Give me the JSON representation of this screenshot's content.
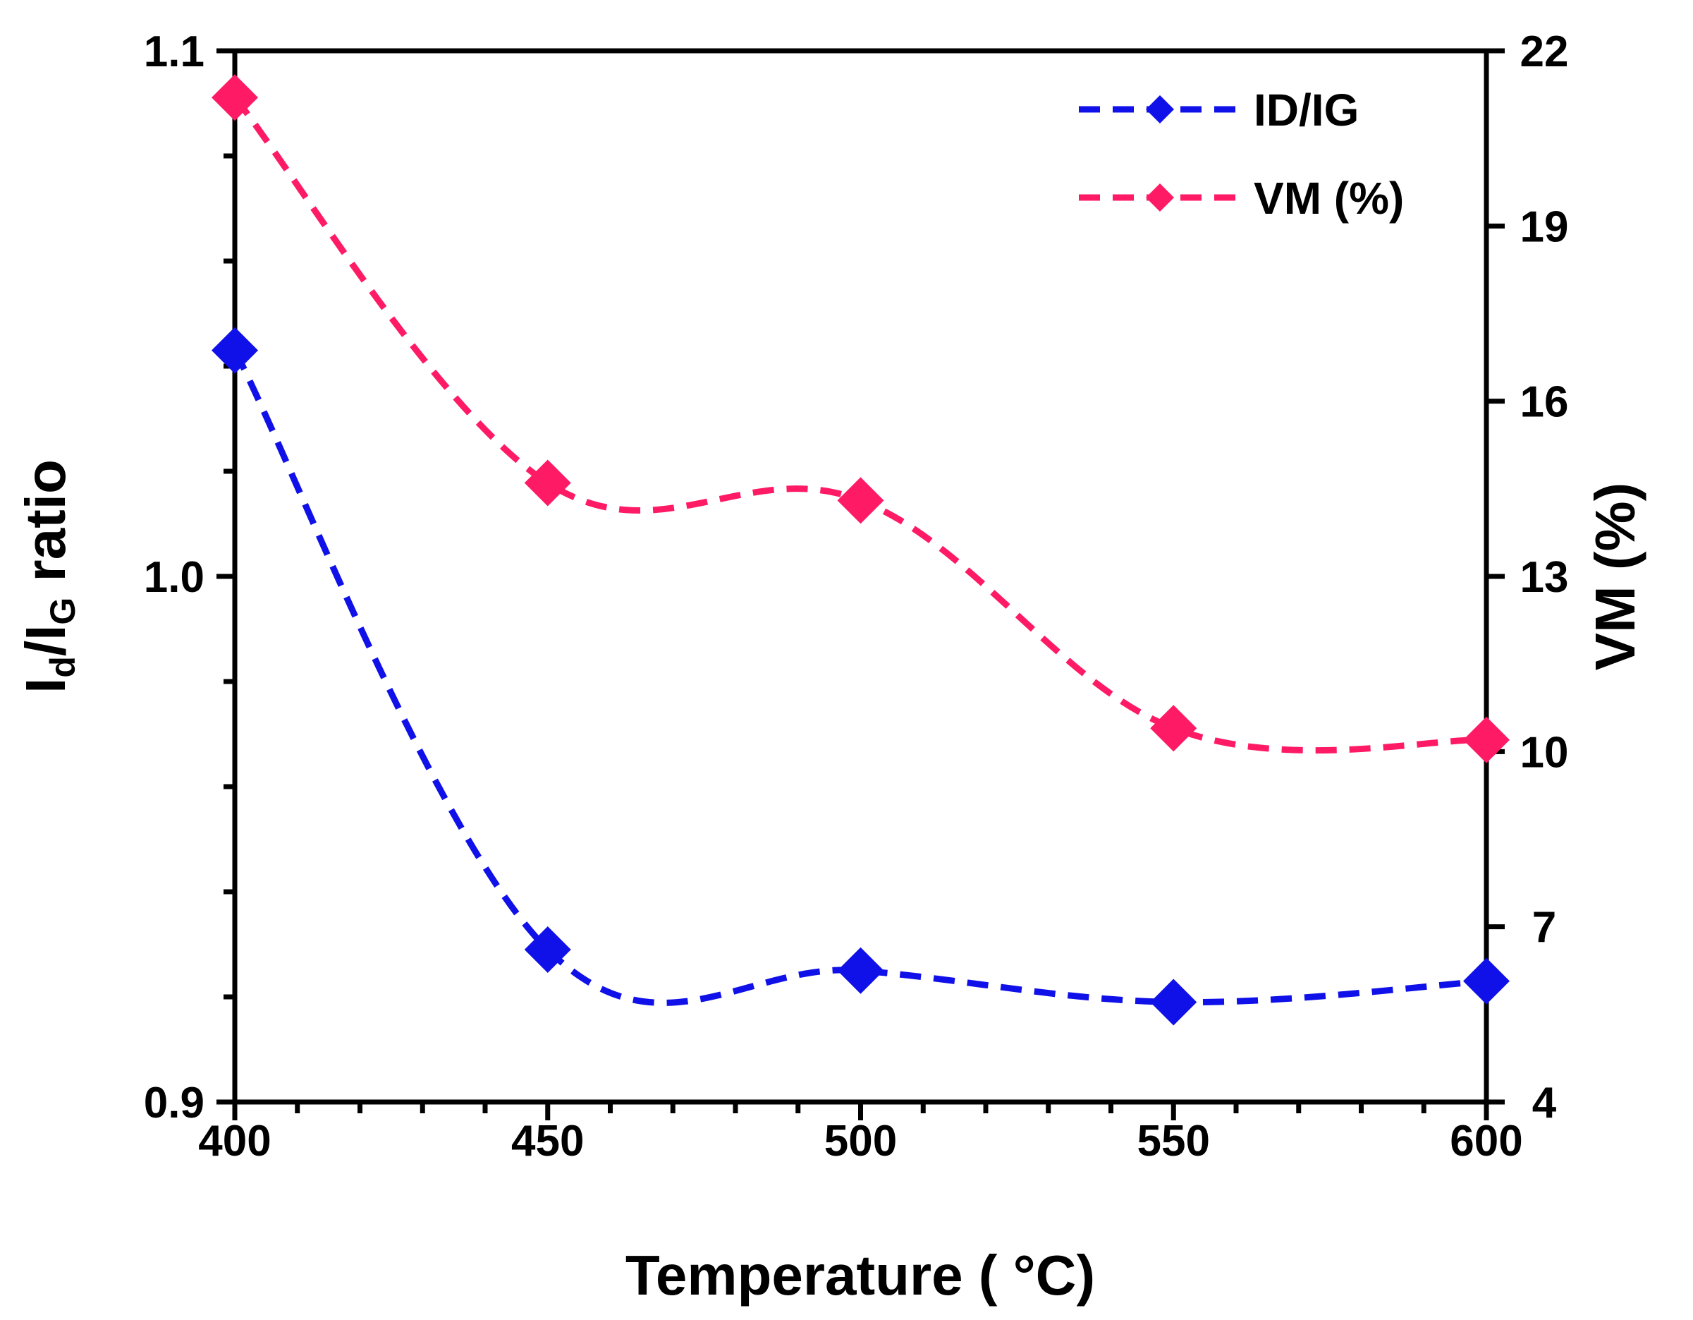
{
  "chart_data": {
    "type": "line",
    "x": [
      400,
      450,
      500,
      550,
      600
    ],
    "xlabel": "Temperature ( °C)",
    "xlim": [
      400,
      600
    ],
    "xticks": [
      "400",
      "450",
      "500",
      "550",
      "600"
    ],
    "y_left": {
      "label_main": "I",
      "label_sub1": "d",
      "label_mid": "/I",
      "label_sub2": "G",
      "label_tail": " ratio",
      "lim": [
        0.9,
        1.1
      ],
      "ticks": [
        "0.9",
        "1.0",
        "1.1"
      ],
      "tick_values": [
        0.9,
        1.0,
        1.1
      ]
    },
    "y_right": {
      "label": "VM (%)",
      "lim": [
        4,
        22
      ],
      "ticks": [
        "4",
        "7",
        "10",
        "13",
        "16",
        "19",
        "22"
      ],
      "tick_values": [
        4,
        7,
        10,
        13,
        16,
        19,
        22
      ]
    },
    "series": [
      {
        "name": "ID/IG",
        "axis": "left",
        "color": "#1010e8",
        "values": [
          1.043,
          0.929,
          0.925,
          0.919,
          0.923
        ]
      },
      {
        "name": "VM (%)",
        "axis": "right",
        "color": "#ff1a66",
        "values": [
          21.2,
          14.6,
          14.3,
          10.4,
          10.2
        ]
      }
    ],
    "legend": {
      "position": "top-right",
      "entries": [
        "ID/IG",
        "VM (%)"
      ]
    }
  }
}
